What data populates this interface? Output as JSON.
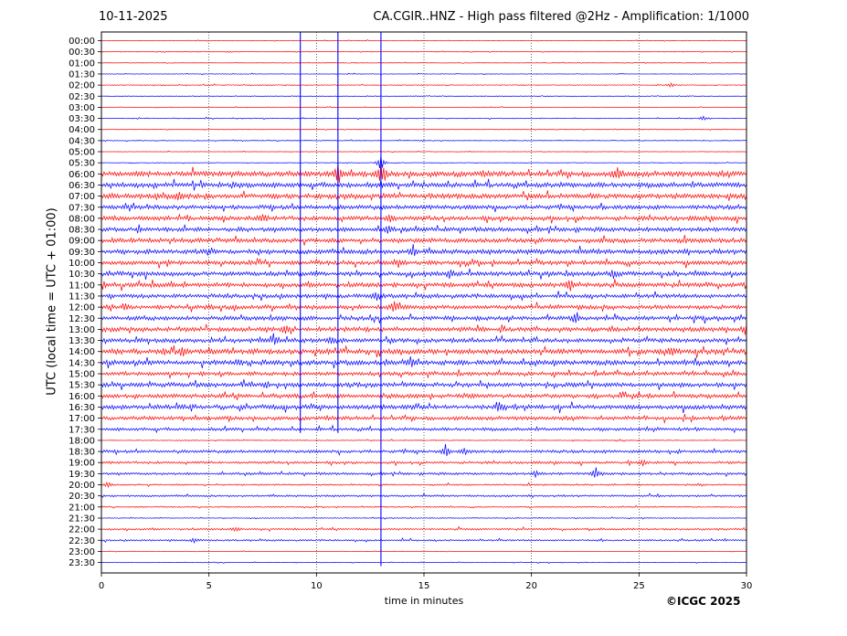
{
  "header": {
    "date": "10-11-2025",
    "title": "CA.CGIR..HNZ - High pass filtered @2Hz - Amplification: 1/1000"
  },
  "footer": {
    "copyright": "©ICGC 2025"
  },
  "colors": {
    "trace_a": "#ff0000",
    "trace_b": "#0000ff",
    "grid": "#000000",
    "background": "#ffffff"
  },
  "chart_data": {
    "type": "line",
    "subtype": "helicorder",
    "title": "CA.CGIR..HNZ - High pass filtered @2Hz - Amplification: 1/1000",
    "xlabel": "time in minutes",
    "ylabel": "UTC (local time = UTC + 01:00)",
    "xlim": [
      0,
      30
    ],
    "x_ticks": [
      0,
      5,
      10,
      15,
      20,
      25,
      30
    ],
    "grid": "vertical dotted at 5-minute intervals",
    "row_labels": [
      "00:00",
      "00:30",
      "01:00",
      "01:30",
      "02:00",
      "02:30",
      "03:00",
      "03:30",
      "04:00",
      "04:30",
      "05:00",
      "05:30",
      "06:00",
      "06:30",
      "07:00",
      "07:30",
      "08:00",
      "08:30",
      "09:00",
      "09:30",
      "10:00",
      "10:30",
      "11:00",
      "11:30",
      "12:00",
      "12:30",
      "13:00",
      "13:30",
      "14:00",
      "14:30",
      "15:00",
      "15:30",
      "16:00",
      "16:30",
      "17:00",
      "17:30",
      "18:00",
      "18:30",
      "19:00",
      "19:30",
      "20:00",
      "20:30",
      "21:00",
      "21:30",
      "22:00",
      "22:30",
      "23:00",
      "23:30"
    ],
    "row_colors": [
      "red",
      "red",
      "red",
      "blue",
      "red",
      "blue",
      "red",
      "blue",
      "red",
      "blue",
      "red",
      "blue",
      "red",
      "blue",
      "red",
      "blue",
      "red",
      "blue",
      "red",
      "blue",
      "red",
      "blue",
      "red",
      "blue",
      "red",
      "blue",
      "red",
      "blue",
      "red",
      "blue",
      "red",
      "blue",
      "red",
      "blue",
      "red",
      "blue",
      "red",
      "blue",
      "red",
      "blue",
      "red",
      "blue",
      "red",
      "blue",
      "red",
      "blue",
      "red",
      "blue"
    ],
    "row_noise": [
      0.3,
      0.3,
      0.3,
      0.3,
      0.4,
      0.3,
      0.3,
      0.4,
      0.3,
      0.4,
      0.3,
      0.3,
      2.6,
      2.4,
      2.4,
      2.0,
      2.1,
      2.1,
      2.2,
      2.2,
      2.0,
      2.1,
      2.2,
      1.9,
      2.0,
      2.0,
      2.2,
      2.0,
      2.5,
      2.4,
      1.8,
      2.1,
      2.0,
      2.2,
      1.8,
      1.5,
      0.5,
      1.4,
      1.2,
      1.2,
      0.8,
      0.9,
      0.5,
      0.4,
      0.9,
      0.8,
      0.3,
      0.3
    ],
    "vertical_spikes": [
      {
        "minute": 9.25,
        "from_row": 0,
        "to_row": 35
      },
      {
        "minute": 11.0,
        "from_row": 0,
        "to_row": 35
      },
      {
        "minute": 13.0,
        "from_row": 0,
        "to_row": 47
      }
    ],
    "events": [
      {
        "row": 4,
        "minute": 26.5,
        "amp": 3
      },
      {
        "row": 7,
        "minute": 28.0,
        "amp": 3
      },
      {
        "row": 11,
        "minute": 13.0,
        "amp": 10
      },
      {
        "row": 12,
        "minute": 24.0,
        "amp": 6
      },
      {
        "row": 12,
        "minute": 13.0,
        "amp": 12
      },
      {
        "row": 12,
        "minute": 11.0,
        "amp": 12
      },
      {
        "row": 14,
        "minute": 3.6,
        "amp": 6
      },
      {
        "row": 16,
        "minute": 7.5,
        "amp": 4
      },
      {
        "row": 16,
        "minute": 13.4,
        "amp": 5
      },
      {
        "row": 17,
        "minute": 13.3,
        "amp": 5
      },
      {
        "row": 19,
        "minute": 14.5,
        "amp": 6
      },
      {
        "row": 20,
        "minute": 13.8,
        "amp": 4
      },
      {
        "row": 21,
        "minute": 23.8,
        "amp": 5
      },
      {
        "row": 21,
        "minute": 16.2,
        "amp": 4
      },
      {
        "row": 22,
        "minute": 21.8,
        "amp": 8
      },
      {
        "row": 22,
        "minute": 0.1,
        "amp": 4
      },
      {
        "row": 23,
        "minute": 12.8,
        "amp": 5
      },
      {
        "row": 24,
        "minute": 13.6,
        "amp": 6
      },
      {
        "row": 24,
        "minute": 1.1,
        "amp": 5
      },
      {
        "row": 25,
        "minute": 22.0,
        "amp": 5
      },
      {
        "row": 26,
        "minute": 30.0,
        "amp": 6
      },
      {
        "row": 26,
        "minute": 8.6,
        "amp": 5
      },
      {
        "row": 27,
        "minute": 8.1,
        "amp": 5
      },
      {
        "row": 27,
        "minute": 10.7,
        "amp": 4
      },
      {
        "row": 28,
        "minute": 3.8,
        "amp": 6
      },
      {
        "row": 28,
        "minute": 26.5,
        "amp": 4
      },
      {
        "row": 29,
        "minute": 14.4,
        "amp": 6
      },
      {
        "row": 33,
        "minute": 18.5,
        "amp": 4
      },
      {
        "row": 37,
        "minute": 16.0,
        "amp": 6
      },
      {
        "row": 37,
        "minute": 16.9,
        "amp": 4
      },
      {
        "row": 38,
        "minute": 25.2,
        "amp": 4
      },
      {
        "row": 39,
        "minute": 23.0,
        "amp": 7
      },
      {
        "row": 39,
        "minute": 20.2,
        "amp": 4
      },
      {
        "row": 40,
        "minute": 0.3,
        "amp": 3
      },
      {
        "row": 44,
        "minute": 6.2,
        "amp": 3
      },
      {
        "row": 45,
        "minute": 4.3,
        "amp": 3
      }
    ]
  }
}
